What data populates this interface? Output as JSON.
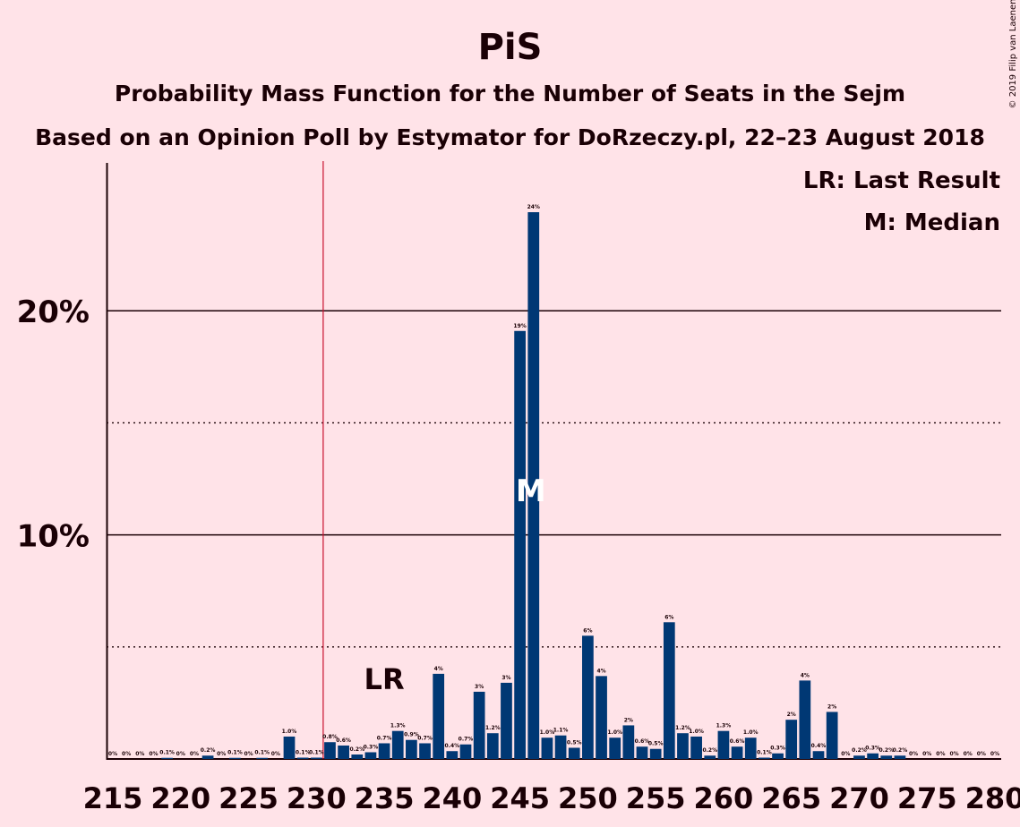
{
  "copyright": "© 2019 Filip van Laenen",
  "chart_data": {
    "type": "bar",
    "title": "PiS",
    "subtitle_1": "Probability Mass Function for the Number of Seats in the Sejm",
    "subtitle_2": "Based on an Opinion Poll by Estymator for DoRzeczy.pl, 22–23 August 2018",
    "legend": [
      "LR: Last Result",
      "M: Median"
    ],
    "last_result": {
      "seat": 231,
      "label": "LR"
    },
    "median": {
      "seat": 246,
      "label": "M"
    },
    "ylim": [
      0,
      26.6
    ],
    "yticks": [
      {
        "value": 10,
        "label": "10%"
      },
      {
        "value": 20,
        "label": "20%"
      }
    ],
    "dotted_gridlines": [
      5,
      15
    ],
    "xticks": [
      215,
      220,
      225,
      230,
      235,
      240,
      245,
      250,
      255,
      260,
      265,
      270,
      275,
      280
    ],
    "x": [
      215,
      216,
      217,
      218,
      219,
      220,
      221,
      222,
      223,
      224,
      225,
      226,
      227,
      228,
      229,
      230,
      231,
      232,
      233,
      234,
      235,
      236,
      237,
      238,
      239,
      240,
      241,
      242,
      243,
      244,
      245,
      246,
      247,
      248,
      249,
      250,
      251,
      252,
      253,
      254,
      255,
      256,
      257,
      258,
      259,
      260,
      261,
      262,
      263,
      264,
      265,
      266,
      267,
      268,
      269,
      270,
      271,
      272,
      273,
      274,
      275,
      276,
      277,
      278,
      279,
      280
    ],
    "values": [
      0,
      0,
      0,
      0,
      0.05,
      0,
      0,
      0.15,
      0,
      0.05,
      0,
      0.05,
      0,
      1.0,
      0.06,
      0.06,
      0.75,
      0.6,
      0.2,
      0.3,
      0.7,
      1.25,
      0.85,
      0.7,
      3.8,
      0.35,
      0.65,
      3.0,
      1.15,
      3.4,
      19.1,
      24.4,
      0.95,
      1.05,
      0.5,
      5.5,
      3.7,
      0.95,
      1.5,
      0.55,
      0.45,
      6.1,
      1.15,
      1.0,
      0.15,
      1.25,
      0.55,
      0.95,
      0.06,
      0.25,
      1.75,
      3.5,
      0.35,
      2.1,
      0,
      0.15,
      0.25,
      0.15,
      0.15,
      0,
      0,
      0,
      0,
      0,
      0,
      0
    ],
    "labels": [
      "0%",
      "0%",
      "0%",
      "0%",
      "0.1%",
      "0%",
      "0%",
      "0.2%",
      "0%",
      "0.1%",
      "0%",
      "0.1%",
      "0%",
      "1.0%",
      "0.1%",
      "0.1%",
      "0.8%",
      "0.6%",
      "0.2%",
      "0.3%",
      "0.7%",
      "1.3%",
      "0.9%",
      "0.7%",
      "4%",
      "0.4%",
      "0.7%",
      "3%",
      "1.2%",
      "3%",
      "19%",
      "24%",
      "1.0%",
      "1.1%",
      "0.5%",
      "6%",
      "4%",
      "1.0%",
      "2%",
      "0.6%",
      "0.5%",
      "6%",
      "1.2%",
      "1.0%",
      "0.2%",
      "1.3%",
      "0.6%",
      "1.0%",
      "0.1%",
      "0.3%",
      "2%",
      "4%",
      "0.4%",
      "2%",
      "0%",
      "0.2%",
      "0.3%",
      "0.2%",
      "0.2%",
      "0%",
      "0%",
      "0%",
      "0%",
      "0%",
      "0%",
      "0%"
    ],
    "colors": {
      "background": "#ffe3e8",
      "bar": "#003874",
      "lr_line": "#c8102e",
      "text": "#1a0005",
      "median_label": "#ffffff"
    }
  }
}
